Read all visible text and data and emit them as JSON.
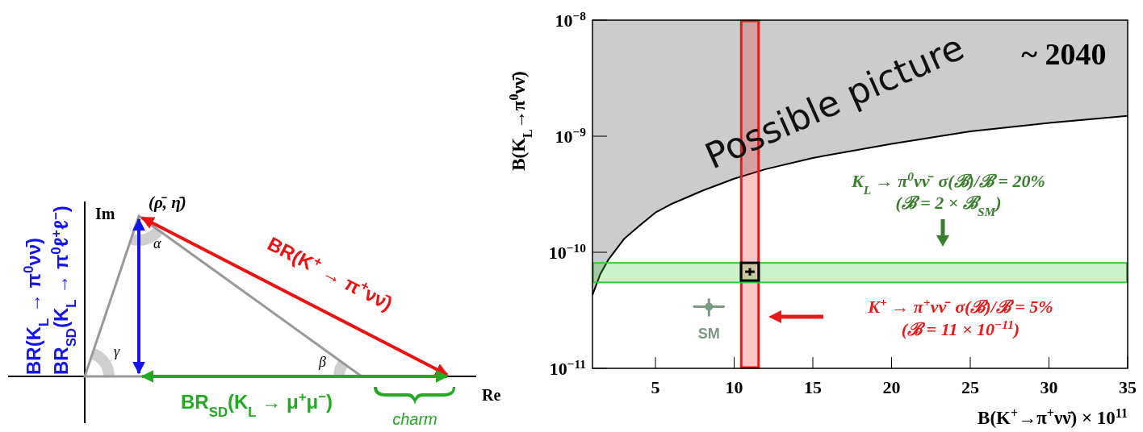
{
  "chart_data": [
    {
      "type": "other",
      "annotations": [
        "Im",
        "Re",
        "(ρ̄, η̄)",
        "α",
        "β",
        "γ",
        "BR(K$_{L}$ → π$^{0}$νν̄)",
        "BR$_{SD}$(K$_{L}$ → π$^{0}$ℓ$^{+}$ℓ$^{−}$)",
        "BR(K$^{+}$ → π$^{+}$νν̄)",
        "BR$_{SD}$(K$_{L}$ → μ$^{+}$μ$^{−}$)",
        "charm"
      ]
    },
    {
      "type": "scatter",
      "xlabel": "B(K$^{+}$→π$^{+}$νν̄)  × 10$^{11}$",
      "ylabel": "B(K$_{L}$→π$^{0}$νν̄)",
      "log": "y",
      "xlim": [
        1,
        35
      ],
      "ylim": [
        1e-11,
        1e-08
      ],
      "xticks": [
        5,
        10,
        15,
        20,
        25,
        30,
        35
      ],
      "yticks": [
        {
          "value": 1e-11,
          "label": "10$^{−11}$"
        },
        {
          "value": 1e-10,
          "label": "10$^{−10}$"
        },
        {
          "value": 1e-09,
          "label": "10$^{−9}$"
        },
        {
          "value": 1e-08,
          "label": "10$^{−8}$"
        }
      ],
      "series": [
        {
          "type": "line",
          "color": "#000000",
          "x": [
            1,
            1.5,
            2,
            3,
            4,
            5,
            6,
            8,
            10,
            12,
            15,
            20,
            25,
            30,
            35
          ],
          "values": [
            4.3e-11,
            6.5e-11,
            8.6e-11,
            1.3e-10,
            1.7e-10,
            2.2e-10,
            2.6e-10,
            3.4e-10,
            4.3e-10,
            5.2e-10,
            6.5e-10,
            8.6e-10,
            1.1e-09,
            1.3e-09,
            1.5e-09
          ],
          "lower": [
            4.3e-11,
            6.5e-11,
            8.6e-11,
            1.3e-10,
            1.7e-10,
            2.2e-10,
            2.6e-10,
            3.4e-10,
            4.3e-10,
            5.2e-10,
            6.5e-10,
            8.6e-10,
            1.1e-09,
            1.3e-09,
            1.5e-09
          ],
          "upper": [
            1e-08,
            1e-08,
            1e-08,
            1e-08,
            1e-08,
            1e-08,
            1e-08,
            1e-08,
            1e-08,
            1e-08,
            1e-08,
            1e-08,
            1e-08,
            1e-08,
            1e-08
          ]
        },
        {
          "type": "scatter",
          "color": "#000000",
          "marker": "square",
          "x": [
            11
          ],
          "values": [
            6.8e-11
          ],
          "errors": [
            5e-12
          ],
          "xerrors": [
            0.3
          ]
        },
        {
          "type": "scatter",
          "name": "SM",
          "color": "#7a9a85",
          "marker": "circle",
          "x": [
            8.4
          ],
          "values": [
            3.4e-11
          ],
          "errors": [
            6e-12
          ],
          "xerrors": [
            1.0
          ]
        }
      ],
      "bands": [
        {
          "axis": "x",
          "from": 10.45,
          "to": 11.55,
          "color": "#e8191a"
        },
        {
          "axis": "y",
          "from": 5.5e-11,
          "to": 8.1e-11,
          "color": "#33cc33"
        }
      ],
      "annotations": [
        "Possible picture",
        "~ 2040",
        "K$_{L}$ → π$^{0}$νν̄  σ(ℬ)/ℬ = 20%",
        "(ℬ = 2 × ℬ$_{SM}$)",
        "K$^{+}$ → π$^{+}$νν̄  σ(ℬ)/ℬ = 5%",
        "(ℬ = 11 × 10$^{−11}$)"
      ],
      "grid": false,
      "legend": false
    }
  ]
}
